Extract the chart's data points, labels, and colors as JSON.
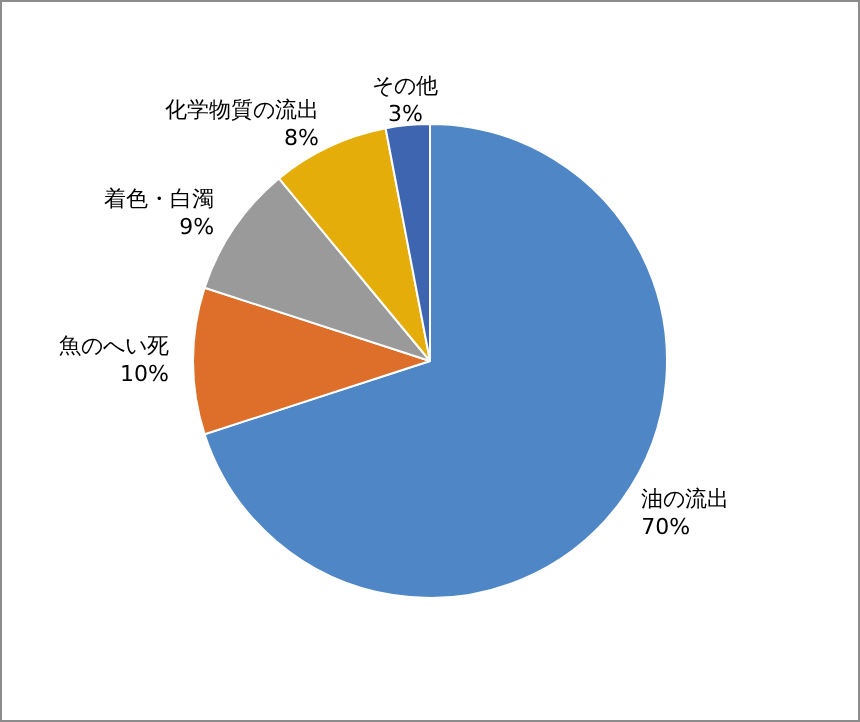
{
  "chart_data": {
    "type": "pie",
    "categories": [
      "油の流出",
      "魚のへい死",
      "着色・白濁",
      "化学物質の流出",
      "その他"
    ],
    "values": [
      70,
      10,
      9,
      8,
      3
    ],
    "colors": [
      "#4f86c6",
      "#dd6f2a",
      "#9a9a9a",
      "#e5ad0a",
      "#3e66b0"
    ],
    "value_labels": [
      "70%",
      "10%",
      "9%",
      "8%",
      "3%"
    ],
    "legend": false
  }
}
